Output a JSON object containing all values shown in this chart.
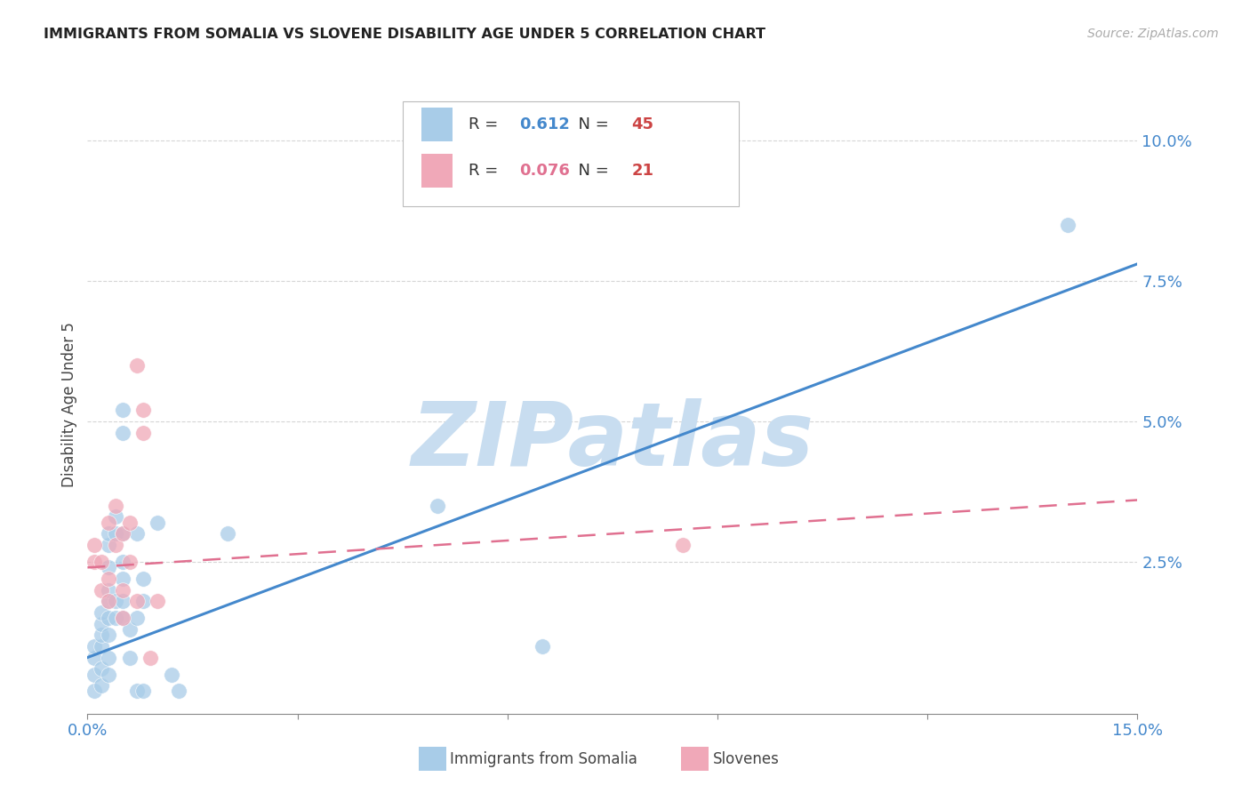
{
  "title": "IMMIGRANTS FROM SOMALIA VS SLOVENE DISABILITY AGE UNDER 5 CORRELATION CHART",
  "source": "Source: ZipAtlas.com",
  "ylabel": "Disability Age Under 5",
  "xlim": [
    0.0,
    0.15
  ],
  "ylim": [
    -0.002,
    0.108
  ],
  "yticks": [
    0.0,
    0.025,
    0.05,
    0.075,
    0.1
  ],
  "ytick_labels": [
    "",
    "2.5%",
    "5.0%",
    "7.5%",
    "10.0%"
  ],
  "xticks": [
    0.0,
    0.03,
    0.06,
    0.09,
    0.12,
    0.15
  ],
  "xtick_labels": [
    "0.0%",
    "",
    "",
    "",
    "",
    "15.0%"
  ],
  "somalia_R": 0.612,
  "somalia_N": 45,
  "slovene_R": 0.076,
  "slovene_N": 21,
  "somalia_color": "#a8cce8",
  "slovene_color": "#f0a8b8",
  "trendline_somalia_color": "#4488cc",
  "trendline_slovene_color": "#e07090",
  "somalia_trendline": [
    [
      0.0,
      0.008
    ],
    [
      0.15,
      0.078
    ]
  ],
  "slovene_trendline": [
    [
      0.0,
      0.024
    ],
    [
      0.15,
      0.036
    ]
  ],
  "somalia_points": [
    [
      0.001,
      0.002
    ],
    [
      0.001,
      0.005
    ],
    [
      0.001,
      0.008
    ],
    [
      0.001,
      0.01
    ],
    [
      0.002,
      0.003
    ],
    [
      0.002,
      0.006
    ],
    [
      0.002,
      0.01
    ],
    [
      0.002,
      0.012
    ],
    [
      0.002,
      0.014
    ],
    [
      0.002,
      0.016
    ],
    [
      0.003,
      0.005
    ],
    [
      0.003,
      0.008
    ],
    [
      0.003,
      0.012
    ],
    [
      0.003,
      0.015
    ],
    [
      0.003,
      0.018
    ],
    [
      0.003,
      0.02
    ],
    [
      0.003,
      0.024
    ],
    [
      0.003,
      0.028
    ],
    [
      0.003,
      0.03
    ],
    [
      0.004,
      0.015
    ],
    [
      0.004,
      0.018
    ],
    [
      0.004,
      0.03
    ],
    [
      0.004,
      0.033
    ],
    [
      0.005,
      0.015
    ],
    [
      0.005,
      0.018
    ],
    [
      0.005,
      0.022
    ],
    [
      0.005,
      0.025
    ],
    [
      0.005,
      0.03
    ],
    [
      0.005,
      0.048
    ],
    [
      0.005,
      0.052
    ],
    [
      0.006,
      0.008
    ],
    [
      0.006,
      0.013
    ],
    [
      0.007,
      0.002
    ],
    [
      0.007,
      0.015
    ],
    [
      0.007,
      0.03
    ],
    [
      0.008,
      0.002
    ],
    [
      0.008,
      0.018
    ],
    [
      0.008,
      0.022
    ],
    [
      0.01,
      0.032
    ],
    [
      0.012,
      0.005
    ],
    [
      0.013,
      0.002
    ],
    [
      0.02,
      0.03
    ],
    [
      0.05,
      0.035
    ],
    [
      0.065,
      0.01
    ],
    [
      0.14,
      0.085
    ]
  ],
  "slovene_points": [
    [
      0.001,
      0.025
    ],
    [
      0.001,
      0.028
    ],
    [
      0.002,
      0.02
    ],
    [
      0.002,
      0.025
    ],
    [
      0.003,
      0.018
    ],
    [
      0.003,
      0.032
    ],
    [
      0.003,
      0.022
    ],
    [
      0.004,
      0.028
    ],
    [
      0.004,
      0.035
    ],
    [
      0.005,
      0.015
    ],
    [
      0.005,
      0.02
    ],
    [
      0.005,
      0.03
    ],
    [
      0.006,
      0.025
    ],
    [
      0.006,
      0.032
    ],
    [
      0.007,
      0.018
    ],
    [
      0.007,
      0.06
    ],
    [
      0.008,
      0.048
    ],
    [
      0.008,
      0.052
    ],
    [
      0.009,
      0.008
    ],
    [
      0.01,
      0.018
    ],
    [
      0.085,
      0.028
    ]
  ],
  "watermark_text": "ZIPatlas",
  "watermark_color": "#c8ddf0",
  "background_color": "#ffffff",
  "grid_color": "#cccccc",
  "legend_R_color": "#4488cc",
  "legend_N_color": "#cc4444",
  "legend_R2_color": "#e07090",
  "legend_N2_color": "#cc4444"
}
